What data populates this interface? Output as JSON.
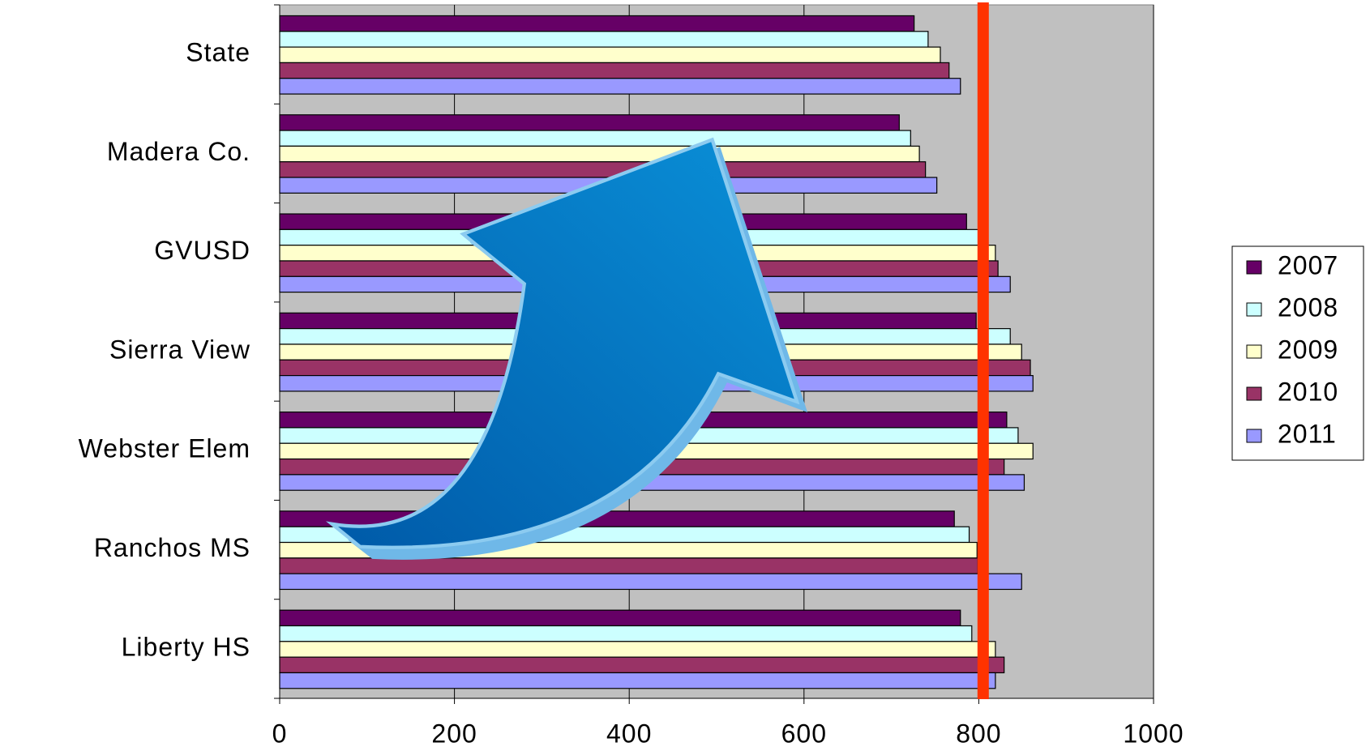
{
  "chart_data": {
    "type": "barh",
    "categories": [
      "State",
      "Madera Co.",
      "GVUSD",
      "Sierra View",
      "Webster Elem",
      "Ranchos MS",
      "Liberty HS"
    ],
    "series": [
      {
        "name": "2007",
        "color": "#660066",
        "values": [
          726,
          709,
          786,
          797,
          832,
          772,
          779
        ]
      },
      {
        "name": "2008",
        "color": "#ccffff",
        "values": [
          742,
          722,
          800,
          836,
          845,
          789,
          792
        ]
      },
      {
        "name": "2009",
        "color": "#ffffcc",
        "values": [
          756,
          732,
          819,
          849,
          862,
          798,
          819
        ]
      },
      {
        "name": "2010",
        "color": "#993366",
        "values": [
          766,
          739,
          822,
          859,
          829,
          799,
          829
        ]
      },
      {
        "name": "2011",
        "color": "#9999ff",
        "values": [
          779,
          752,
          836,
          862,
          852,
          849,
          819
        ]
      }
    ],
    "xlim": [
      0,
      1000
    ],
    "xticks": [
      0,
      200,
      400,
      600,
      800,
      1000
    ],
    "grid": true,
    "plot_background": "#c0c0c0",
    "reference_line": {
      "value": 805,
      "color": "#ff3300"
    },
    "legend": "right"
  }
}
